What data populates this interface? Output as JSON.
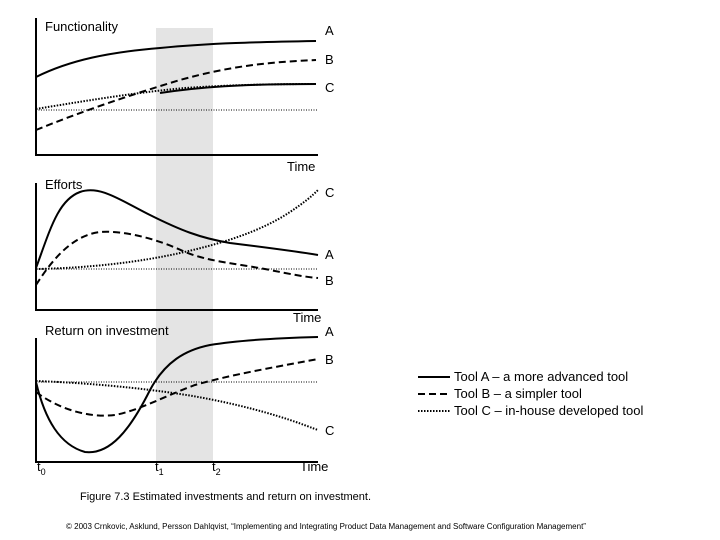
{
  "panels": {
    "functionality": {
      "title": "Functionality",
      "time_label": "Time",
      "labels": [
        "A",
        "B",
        "C"
      ]
    },
    "efforts": {
      "title": "Efforts",
      "time_label": "Time",
      "labels": [
        "C",
        "A",
        "B"
      ]
    },
    "roi": {
      "title": "Return on investment",
      "time_label": "Time",
      "labels": [
        "A",
        "B",
        "C"
      ]
    }
  },
  "time_marks": [
    {
      "base": "t",
      "sub": "0"
    },
    {
      "base": "t",
      "sub": "1"
    },
    {
      "base": "t",
      "sub": "2"
    }
  ],
  "legend": [
    {
      "style": "solid",
      "label": "Tool A – a more advanced tool"
    },
    {
      "style": "dashed",
      "label": "Tool B – a simpler tool"
    },
    {
      "style": "dotted",
      "label": "Tool C – in-house developed tool"
    }
  ],
  "caption": "Figure 7.3 Estimated investments and return on investment.",
  "footer": "© 2003 Crnkovic, Asklund, Persson Dahlqvist, “Implementing and Integrating Product Data Management and Software Configuration Management”",
  "colors": {
    "shade": "#e4e4e4",
    "ink": "#000000"
  }
}
